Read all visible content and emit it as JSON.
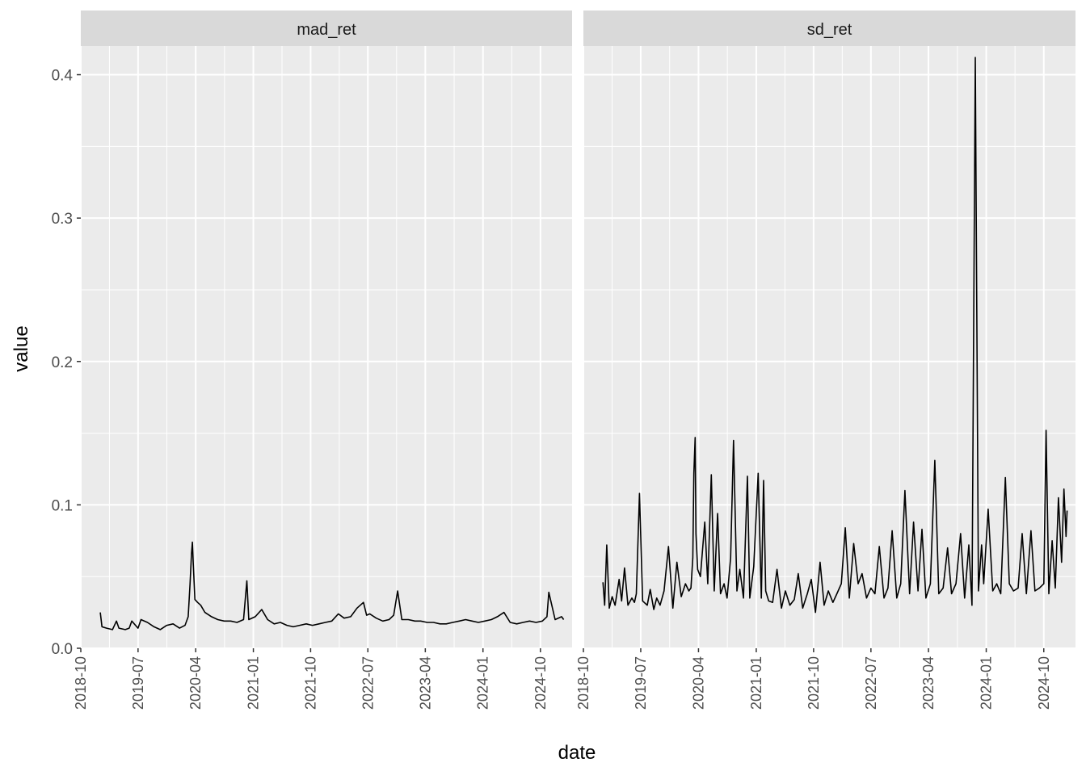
{
  "chart_data": {
    "type": "line",
    "xlabel": "date",
    "ylabel": "value",
    "xlim": [
      "2018-10-01",
      "2025-03-01"
    ],
    "ylim": [
      0.0,
      0.42
    ],
    "x_ticks": [
      "2018-10",
      "2019-07",
      "2020-04",
      "2021-01",
      "2021-10",
      "2022-07",
      "2023-04",
      "2024-01",
      "2024-10"
    ],
    "y_ticks": [
      "0.0",
      "0.1",
      "0.2",
      "0.3",
      "0.4"
    ],
    "grid": true,
    "colors": {
      "panel_bg": "#ebebeb",
      "grid": "#ffffff",
      "strip_bg": "#d9d9d9",
      "line": "#000000",
      "axis_text": "#4d4d4d"
    },
    "facets": [
      {
        "strip": "mad_ret",
        "series": [
          {
            "x": [
              "2019-01-02",
              "2019-01-10",
              "2019-02-01",
              "2019-03-01",
              "2019-03-20",
              "2019-04-01",
              "2019-05-01",
              "2019-05-20",
              "2019-06-01",
              "2019-07-01",
              "2019-07-15",
              "2019-08-15",
              "2019-09-15",
              "2019-10-15",
              "2019-11-15",
              "2019-12-15",
              "2020-01-15",
              "2020-02-10",
              "2020-02-25",
              "2020-03-05",
              "2020-03-12",
              "2020-03-16",
              "2020-03-20",
              "2020-03-28",
              "2020-04-10",
              "2020-04-25",
              "2020-05-15",
              "2020-06-15",
              "2020-07-15",
              "2020-08-15",
              "2020-09-15",
              "2020-10-15",
              "2020-11-15",
              "2020-12-01",
              "2020-12-10",
              "2021-01-10",
              "2021-02-10",
              "2021-03-10",
              "2021-04-10",
              "2021-05-10",
              "2021-06-10",
              "2021-07-10",
              "2021-08-10",
              "2021-09-10",
              "2021-10-10",
              "2021-11-10",
              "2021-12-10",
              "2022-01-10",
              "2022-02-10",
              "2022-03-10",
              "2022-04-10",
              "2022-05-10",
              "2022-06-10",
              "2022-06-25",
              "2022-07-10",
              "2022-08-10",
              "2022-09-10",
              "2022-10-10",
              "2022-11-01",
              "2022-11-20",
              "2022-12-10",
              "2023-01-10",
              "2023-02-10",
              "2023-03-10",
              "2023-04-10",
              "2023-05-10",
              "2023-06-10",
              "2023-07-10",
              "2023-08-10",
              "2023-09-10",
              "2023-10-10",
              "2023-11-10",
              "2023-12-10",
              "2024-01-10",
              "2024-02-10",
              "2024-03-10",
              "2024-04-10",
              "2024-05-10",
              "2024-06-10",
              "2024-07-10",
              "2024-08-10",
              "2024-09-10",
              "2024-10-10",
              "2024-11-01",
              "2024-11-10",
              "2024-12-10",
              "2025-01-10",
              "2025-01-20"
            ],
            "y": [
              0.025,
              0.015,
              0.014,
              0.013,
              0.019,
              0.014,
              0.013,
              0.014,
              0.019,
              0.014,
              0.02,
              0.018,
              0.015,
              0.013,
              0.016,
              0.017,
              0.014,
              0.016,
              0.022,
              0.045,
              0.066,
              0.074,
              0.06,
              0.034,
              0.032,
              0.03,
              0.025,
              0.022,
              0.02,
              0.019,
              0.019,
              0.018,
              0.02,
              0.047,
              0.02,
              0.022,
              0.027,
              0.02,
              0.017,
              0.018,
              0.016,
              0.015,
              0.016,
              0.017,
              0.016,
              0.017,
              0.018,
              0.019,
              0.024,
              0.021,
              0.022,
              0.028,
              0.032,
              0.023,
              0.024,
              0.021,
              0.019,
              0.02,
              0.023,
              0.04,
              0.02,
              0.02,
              0.019,
              0.019,
              0.018,
              0.018,
              0.017,
              0.017,
              0.018,
              0.019,
              0.02,
              0.019,
              0.018,
              0.019,
              0.02,
              0.022,
              0.025,
              0.018,
              0.017,
              0.018,
              0.019,
              0.018,
              0.019,
              0.022,
              0.039,
              0.02,
              0.022,
              0.02
            ]
          }
        ]
      },
      {
        "strip": "sd_ret",
        "series": [
          {
            "x": [
              "2019-01-02",
              "2019-01-10",
              "2019-01-20",
              "2019-02-01",
              "2019-02-15",
              "2019-03-01",
              "2019-03-20",
              "2019-04-01",
              "2019-04-15",
              "2019-05-01",
              "2019-05-20",
              "2019-06-01",
              "2019-06-10",
              "2019-06-25",
              "2019-07-10",
              "2019-08-01",
              "2019-08-15",
              "2019-09-01",
              "2019-09-15",
              "2019-10-01",
              "2019-10-20",
              "2019-11-10",
              "2019-12-01",
              "2019-12-20",
              "2020-01-10",
              "2020-01-30",
              "2020-02-15",
              "2020-02-25",
              "2020-03-05",
              "2020-03-10",
              "2020-03-16",
              "2020-03-20",
              "2020-03-28",
              "2020-04-10",
              "2020-05-01",
              "2020-05-15",
              "2020-06-01",
              "2020-06-15",
              "2020-07-01",
              "2020-07-15",
              "2020-08-01",
              "2020-08-15",
              "2020-09-01",
              "2020-09-15",
              "2020-10-01",
              "2020-10-15",
              "2020-11-01",
              "2020-11-20",
              "2020-12-01",
              "2020-12-20",
              "2021-01-10",
              "2021-01-25",
              "2021-02-05",
              "2021-02-15",
              "2021-03-01",
              "2021-03-20",
              "2021-04-10",
              "2021-05-01",
              "2021-05-20",
              "2021-06-10",
              "2021-07-01",
              "2021-07-20",
              "2021-08-10",
              "2021-09-01",
              "2021-09-20",
              "2021-10-10",
              "2021-11-01",
              "2021-11-20",
              "2021-12-10",
              "2022-01-01",
              "2022-01-20",
              "2022-02-10",
              "2022-03-01",
              "2022-03-20",
              "2022-04-10",
              "2022-05-01",
              "2022-05-20",
              "2022-06-10",
              "2022-07-01",
              "2022-07-20",
              "2022-08-10",
              "2022-09-01",
              "2022-09-20",
              "2022-10-10",
              "2022-11-01",
              "2022-11-20",
              "2022-12-10",
              "2023-01-01",
              "2023-01-20",
              "2023-02-10",
              "2023-03-01",
              "2023-03-20",
              "2023-04-10",
              "2023-05-01",
              "2023-05-20",
              "2023-06-10",
              "2023-07-01",
              "2023-07-20",
              "2023-08-10",
              "2023-09-01",
              "2023-09-20",
              "2023-10-10",
              "2023-10-25",
              "2023-11-10",
              "2023-11-25",
              "2023-12-10",
              "2023-12-20",
              "2024-01-10",
              "2024-02-01",
              "2024-02-20",
              "2024-03-10",
              "2024-04-01",
              "2024-04-20",
              "2024-05-10",
              "2024-06-01",
              "2024-06-20",
              "2024-07-10",
              "2024-08-01",
              "2024-08-20",
              "2024-09-10",
              "2024-10-01",
              "2024-10-12",
              "2024-10-25",
              "2024-11-10",
              "2024-11-25",
              "2024-12-10",
              "2024-12-25",
              "2025-01-05",
              "2025-01-15",
              "2025-01-20"
            ],
            "y": [
              0.046,
              0.03,
              0.072,
              0.028,
              0.036,
              0.03,
              0.048,
              0.033,
              0.056,
              0.03,
              0.035,
              0.032,
              0.038,
              0.108,
              0.033,
              0.03,
              0.041,
              0.027,
              0.035,
              0.03,
              0.04,
              0.071,
              0.028,
              0.06,
              0.036,
              0.045,
              0.04,
              0.042,
              0.063,
              0.122,
              0.147,
              0.08,
              0.055,
              0.05,
              0.088,
              0.045,
              0.121,
              0.04,
              0.094,
              0.038,
              0.045,
              0.035,
              0.063,
              0.145,
              0.04,
              0.055,
              0.035,
              0.12,
              0.035,
              0.057,
              0.122,
              0.035,
              0.117,
              0.04,
              0.033,
              0.032,
              0.055,
              0.028,
              0.04,
              0.03,
              0.034,
              0.052,
              0.028,
              0.038,
              0.048,
              0.025,
              0.06,
              0.03,
              0.04,
              0.032,
              0.038,
              0.045,
              0.084,
              0.035,
              0.073,
              0.045,
              0.052,
              0.035,
              0.042,
              0.038,
              0.071,
              0.035,
              0.042,
              0.082,
              0.035,
              0.045,
              0.11,
              0.038,
              0.088,
              0.04,
              0.083,
              0.035,
              0.045,
              0.131,
              0.038,
              0.042,
              0.07,
              0.038,
              0.045,
              0.08,
              0.035,
              0.072,
              0.03,
              0.412,
              0.04,
              0.072,
              0.045,
              0.097,
              0.04,
              0.045,
              0.038,
              0.119,
              0.045,
              0.04,
              0.042,
              0.08,
              0.038,
              0.082,
              0.04,
              0.042,
              0.045,
              0.152,
              0.038,
              0.075,
              0.042,
              0.105,
              0.06,
              0.111,
              0.078,
              0.096
            ]
          }
        ]
      }
    ]
  }
}
